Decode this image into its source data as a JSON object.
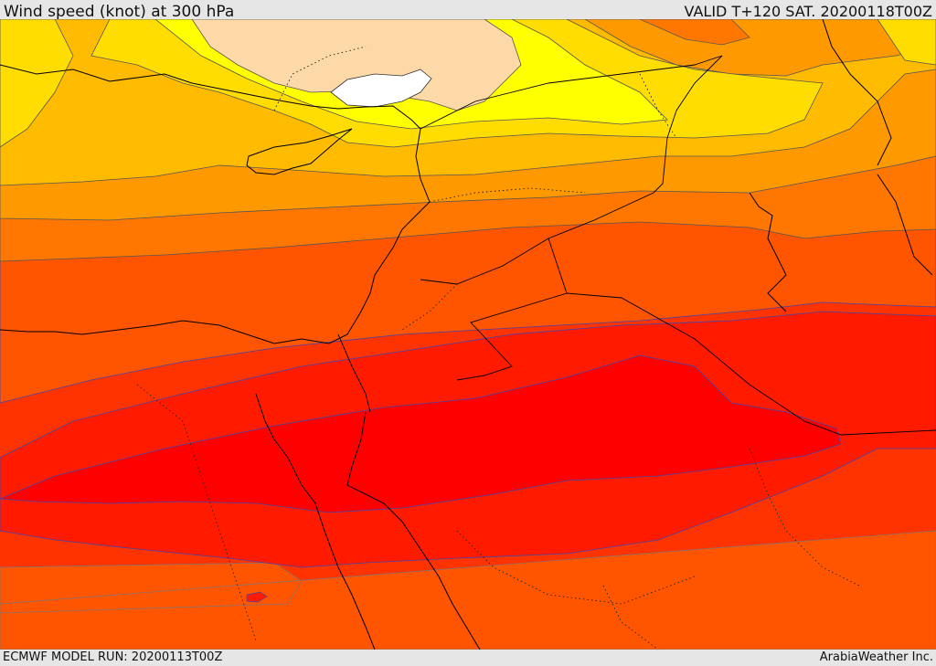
{
  "header": {
    "title": "Wind speed (knot) at 300 hPa",
    "valid": "VALID T+120 SAT. 20200118T00Z"
  },
  "footer": {
    "model_run": "ECMWF MODEL RUN: 20200113T00Z",
    "credit": "ArabiaWeather Inc."
  },
  "map": {
    "colors": {
      "band_peach": "#fcd9a6",
      "band_white": "#ffffff",
      "band_yellow_bright": "#ffff00",
      "band_yellow": "#ffdd00",
      "band_amber": "#ffbb00",
      "band_orange_light": "#ff9900",
      "band_orange": "#ff7700",
      "band_orange_red": "#ff5500",
      "band_red_orange": "#ff3300",
      "band_red": "#ff1a00",
      "band_red_core": "#ff0000",
      "contour": "#555555",
      "inner_contour": "#4444aa",
      "border": "#000000"
    }
  }
}
